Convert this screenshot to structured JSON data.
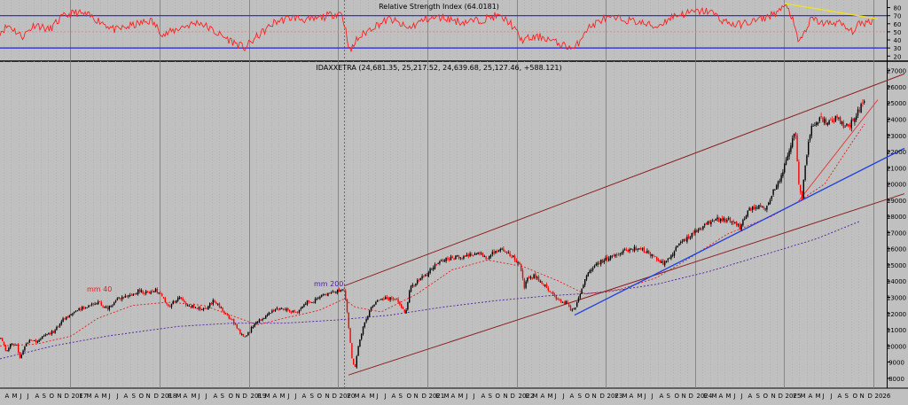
{
  "rsi_panel": {
    "title": "Relative Strength Index (64.0181)",
    "y_ticks": [
      20,
      30,
      40,
      50,
      60,
      70,
      80
    ],
    "ylim": [
      17,
      85
    ],
    "upper_level": 70,
    "lower_level": 30,
    "mid_level": 50,
    "line_color": "#ff2020",
    "level_color": "#2020e0",
    "trend_color": "#f0e020"
  },
  "price_panel": {
    "title": "IDAXXETRA (24,681.35, 25,217.52, 24,639.68, 25,127.46, +588.121)",
    "ylim": [
      7500,
      27200
    ],
    "ma40_label": "mm 40",
    "ma200_label": "mm 200",
    "up_color": "#000000",
    "down_color": "#ff0000",
    "ma40_color": "#e02020",
    "ma200_color": "#5020a0",
    "channel_color": "#8b2020",
    "support_color": "#1f3fe0",
    "wedge_color": "#e04040"
  },
  "chart_data": {
    "type": "candlestick",
    "instrument": "IDAXXETRA",
    "last": {
      "open": 24681.35,
      "high": 25217.52,
      "low": 24639.68,
      "close": 25127.46,
      "change": 588.121
    },
    "x_labels": [
      "A",
      "M",
      "J",
      "J",
      "A",
      "S",
      "O",
      "N",
      "D",
      "2017",
      "F",
      "M",
      "A",
      "M",
      "J",
      "J",
      "A",
      "S",
      "O",
      "N",
      "D",
      "2018",
      "F",
      "M",
      "A",
      "M",
      "J",
      "J",
      "A",
      "S",
      "O",
      "N",
      "D",
      "2019",
      "F",
      "M",
      "A",
      "M",
      "J",
      "J",
      "A",
      "S",
      "O",
      "N",
      "D",
      "2020",
      "F",
      "M",
      "A",
      "M",
      "J",
      "J",
      "A",
      "S",
      "O",
      "N",
      "D",
      "2021",
      "F",
      "M",
      "A",
      "M",
      "J",
      "J",
      "A",
      "S",
      "O",
      "N",
      "D",
      "2022",
      "F",
      "M",
      "A",
      "M",
      "J",
      "J",
      "A",
      "S",
      "O",
      "N",
      "D",
      "2023",
      "F",
      "M",
      "A",
      "M",
      "J",
      "J",
      "A",
      "S",
      "O",
      "N",
      "D",
      "2024",
      "F",
      "M",
      "A",
      "M",
      "J",
      "J",
      "A",
      "S",
      "O",
      "N",
      "D",
      "2025",
      "F",
      "M",
      "A",
      "M",
      "J",
      "J",
      "A",
      "S",
      "O",
      "N",
      "D",
      "2026"
    ],
    "y_ticks": [
      8000,
      9000,
      10000,
      11000,
      12000,
      13000,
      14000,
      15000,
      16000,
      17000,
      18000,
      19000,
      20000,
      21000,
      22000,
      23000,
      24000,
      25000,
      26000,
      27000
    ],
    "anchors": [
      [
        0,
        10500
      ],
      [
        6,
        9700
      ],
      [
        12,
        10200
      ],
      [
        18,
        10000
      ],
      [
        22,
        9200
      ],
      [
        28,
        10100
      ],
      [
        34,
        10400
      ],
      [
        40,
        10200
      ],
      [
        48,
        10600
      ],
      [
        60,
        10900
      ],
      [
        70,
        11600
      ],
      [
        80,
        12000
      ],
      [
        90,
        12300
      ],
      [
        100,
        12500
      ],
      [
        110,
        12700
      ],
      [
        120,
        12300
      ],
      [
        132,
        12900
      ],
      [
        145,
        13100
      ],
      [
        155,
        13400
      ],
      [
        165,
        13300
      ],
      [
        175,
        13500
      ],
      [
        183,
        12900
      ],
      [
        190,
        12400
      ],
      [
        200,
        13000
      ],
      [
        210,
        12500
      ],
      [
        220,
        12400
      ],
      [
        230,
        12200
      ],
      [
        240,
        12800
      ],
      [
        250,
        12200
      ],
      [
        260,
        11600
      ],
      [
        270,
        10800
      ],
      [
        276,
        10500
      ],
      [
        284,
        11200
      ],
      [
        294,
        11700
      ],
      [
        305,
        12100
      ],
      [
        315,
        12400
      ],
      [
        325,
        12200
      ],
      [
        335,
        12000
      ],
      [
        343,
        12700
      ],
      [
        352,
        12700
      ],
      [
        362,
        13100
      ],
      [
        372,
        13300
      ],
      [
        385,
        13500
      ],
      [
        388,
        13300
      ],
      [
        392,
        11300
      ],
      [
        396,
        9200
      ],
      [
        399,
        8500
      ],
      [
        404,
        10300
      ],
      [
        410,
        11400
      ],
      [
        420,
        12600
      ],
      [
        432,
        12900
      ],
      [
        445,
        12900
      ],
      [
        456,
        12000
      ],
      [
        462,
        13600
      ],
      [
        472,
        14100
      ],
      [
        482,
        14500
      ],
      [
        492,
        15200
      ],
      [
        505,
        15400
      ],
      [
        518,
        15500
      ],
      [
        530,
        15600
      ],
      [
        540,
        15700
      ],
      [
        548,
        15300
      ],
      [
        556,
        15800
      ],
      [
        566,
        15900
      ],
      [
        576,
        15600
      ],
      [
        586,
        15000
      ],
      [
        590,
        13600
      ],
      [
        594,
        14200
      ],
      [
        602,
        14300
      ],
      [
        610,
        13900
      ],
      [
        620,
        13300
      ],
      [
        628,
        12800
      ],
      [
        638,
        12700
      ],
      [
        644,
        12100
      ],
      [
        648,
        12400
      ],
      [
        654,
        13300
      ],
      [
        662,
        14500
      ],
      [
        672,
        15100
      ],
      [
        686,
        15400
      ],
      [
        700,
        15800
      ],
      [
        714,
        16000
      ],
      [
        728,
        15900
      ],
      [
        738,
        15400
      ],
      [
        748,
        15100
      ],
      [
        756,
        15600
      ],
      [
        766,
        16400
      ],
      [
        778,
        16800
      ],
      [
        790,
        17300
      ],
      [
        804,
        17800
      ],
      [
        816,
        17800
      ],
      [
        826,
        17700
      ],
      [
        834,
        17300
      ],
      [
        842,
        18300
      ],
      [
        852,
        18700
      ],
      [
        862,
        18400
      ],
      [
        870,
        19400
      ],
      [
        880,
        20500
      ],
      [
        890,
        22200
      ],
      [
        896,
        23300
      ],
      [
        900,
        20100
      ],
      [
        903,
        18900
      ],
      [
        908,
        21600
      ],
      [
        914,
        23600
      ],
      [
        922,
        24000
      ],
      [
        932,
        23800
      ],
      [
        944,
        24100
      ],
      [
        952,
        23500
      ],
      [
        960,
        23800
      ],
      [
        968,
        24600
      ],
      [
        975,
        25100
      ]
    ],
    "ma40_anchors": [
      [
        0,
        10000
      ],
      [
        40,
        10100
      ],
      [
        80,
        10600
      ],
      [
        110,
        11700
      ],
      [
        150,
        12500
      ],
      [
        190,
        12700
      ],
      [
        230,
        12500
      ],
      [
        260,
        11900
      ],
      [
        290,
        11300
      ],
      [
        320,
        11700
      ],
      [
        360,
        12200
      ],
      [
        388,
        12900
      ],
      [
        400,
        12400
      ],
      [
        430,
        12100
      ],
      [
        470,
        13200
      ],
      [
        510,
        14700
      ],
      [
        550,
        15300
      ],
      [
        590,
        14900
      ],
      [
        630,
        14000
      ],
      [
        660,
        13200
      ],
      [
        700,
        13500
      ],
      [
        740,
        14200
      ],
      [
        780,
        15500
      ],
      [
        820,
        16900
      ],
      [
        870,
        18000
      ],
      [
        900,
        18900
      ],
      [
        930,
        20000
      ],
      [
        960,
        22500
      ],
      [
        975,
        23700
      ]
    ],
    "ma200_anchors": [
      [
        0,
        9200
      ],
      [
        60,
        10000
      ],
      [
        120,
        10600
      ],
      [
        200,
        11200
      ],
      [
        260,
        11400
      ],
      [
        320,
        11400
      ],
      [
        380,
        11600
      ],
      [
        440,
        11900
      ],
      [
        500,
        12400
      ],
      [
        560,
        12800
      ],
      [
        620,
        13100
      ],
      [
        680,
        13300
      ],
      [
        740,
        13800
      ],
      [
        800,
        14600
      ],
      [
        860,
        15600
      ],
      [
        920,
        16600
      ],
      [
        970,
        17700
      ]
    ],
    "channel_upper": [
      [
        388,
        13700
      ],
      [
        1020,
        26800
      ]
    ],
    "channel_lower": [
      [
        393,
        8200
      ],
      [
        1020,
        19400
      ]
    ],
    "support_line": [
      [
        648,
        11900
      ],
      [
        1020,
        22200
      ]
    ],
    "wedge_line": [
      [
        900,
        18900
      ],
      [
        990,
        25200
      ]
    ],
    "rsi_anchors": [
      [
        0,
        50
      ],
      [
        10,
        58
      ],
      [
        25,
        44
      ],
      [
        40,
        60
      ],
      [
        55,
        52
      ],
      [
        70,
        68
      ],
      [
        85,
        74
      ],
      [
        100,
        70
      ],
      [
        115,
        62
      ],
      [
        130,
        52
      ],
      [
        150,
        58
      ],
      [
        170,
        64
      ],
      [
        185,
        46
      ],
      [
        205,
        56
      ],
      [
        225,
        62
      ],
      [
        245,
        48
      ],
      [
        262,
        38
      ],
      [
        276,
        30
      ],
      [
        290,
        44
      ],
      [
        310,
        62
      ],
      [
        330,
        68
      ],
      [
        350,
        64
      ],
      [
        370,
        70
      ],
      [
        385,
        74
      ],
      [
        390,
        52
      ],
      [
        395,
        24
      ],
      [
        402,
        40
      ],
      [
        420,
        56
      ],
      [
        440,
        66
      ],
      [
        460,
        54
      ],
      [
        480,
        66
      ],
      [
        500,
        68
      ],
      [
        520,
        62
      ],
      [
        540,
        64
      ],
      [
        560,
        70
      ],
      [
        575,
        62
      ],
      [
        588,
        40
      ],
      [
        598,
        42
      ],
      [
        612,
        44
      ],
      [
        628,
        36
      ],
      [
        640,
        32
      ],
      [
        648,
        28
      ],
      [
        660,
        52
      ],
      [
        680,
        66
      ],
      [
        700,
        66
      ],
      [
        720,
        62
      ],
      [
        740,
        56
      ],
      [
        760,
        70
      ],
      [
        780,
        74
      ],
      [
        800,
        76
      ],
      [
        815,
        64
      ],
      [
        830,
        58
      ],
      [
        845,
        62
      ],
      [
        860,
        66
      ],
      [
        875,
        74
      ],
      [
        888,
        82
      ],
      [
        893,
        68
      ],
      [
        900,
        38
      ],
      [
        905,
        44
      ],
      [
        915,
        66
      ],
      [
        930,
        60
      ],
      [
        945,
        62
      ],
      [
        960,
        50
      ],
      [
        970,
        60
      ],
      [
        985,
        64
      ]
    ],
    "rsi_trendline": [
      [
        885,
        85
      ],
      [
        990,
        66
      ]
    ]
  }
}
